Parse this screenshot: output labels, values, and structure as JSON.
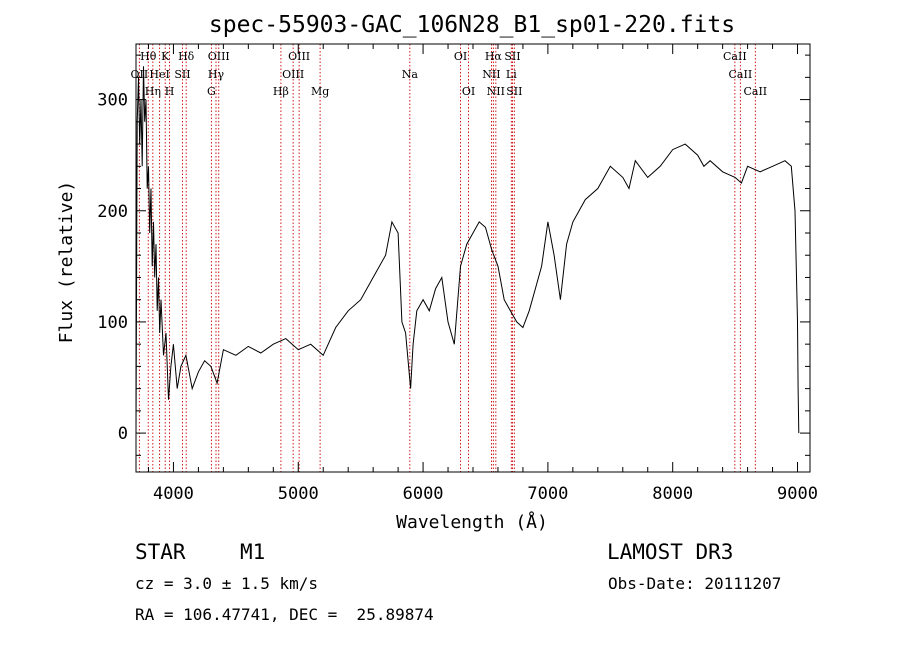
{
  "chart_data": {
    "type": "line",
    "title": "spec-55903-GAC_106N28_B1_sp01-220.fits",
    "xlabel": "Wavelength (Å)",
    "ylabel": "Flux (relative)",
    "xlim": [
      3700,
      9100
    ],
    "ylim": [
      -35,
      350
    ],
    "xticks": [
      4000,
      5000,
      6000,
      7000,
      8000,
      9000
    ],
    "xtick_labels": [
      "4000",
      "5000",
      "6000",
      "7000",
      "8000",
      "9000"
    ],
    "yticks": [
      0,
      100,
      200,
      300
    ],
    "ytick_labels": [
      "0",
      "100",
      "200",
      "300"
    ],
    "series": [
      {
        "name": "flux",
        "x": [
          3700,
          3710,
          3720,
          3730,
          3740,
          3750,
          3760,
          3770,
          3780,
          3790,
          3800,
          3810,
          3820,
          3830,
          3840,
          3850,
          3860,
          3870,
          3880,
          3890,
          3900,
          3920,
          3940,
          3960,
          3980,
          4000,
          4030,
          4060,
          4100,
          4150,
          4200,
          4250,
          4300,
          4350,
          4400,
          4500,
          4600,
          4700,
          4800,
          4900,
          5000,
          5100,
          5200,
          5300,
          5400,
          5500,
          5600,
          5700,
          5750,
          5800,
          5830,
          5860,
          5900,
          5920,
          5950,
          6000,
          6050,
          6100,
          6150,
          6200,
          6250,
          6300,
          6350,
          6400,
          6450,
          6500,
          6550,
          6600,
          6650,
          6700,
          6750,
          6800,
          6850,
          6900,
          6950,
          7000,
          7050,
          7100,
          7150,
          7200,
          7300,
          7400,
          7500,
          7600,
          7650,
          7700,
          7800,
          7900,
          8000,
          8100,
          8200,
          8250,
          8300,
          8400,
          8500,
          8550,
          8600,
          8700,
          8800,
          8900,
          8950,
          8980,
          9000,
          9005,
          9010
        ],
        "y": [
          0,
          280,
          320,
          260,
          300,
          240,
          330,
          280,
          300,
          220,
          240,
          180,
          220,
          150,
          190,
          140,
          170,
          110,
          140,
          90,
          120,
          70,
          90,
          30,
          60,
          80,
          40,
          60,
          70,
          40,
          55,
          65,
          60,
          45,
          75,
          70,
          78,
          72,
          80,
          85,
          75,
          80,
          70,
          95,
          110,
          120,
          140,
          160,
          190,
          180,
          100,
          90,
          40,
          80,
          110,
          120,
          110,
          130,
          140,
          100,
          80,
          150,
          170,
          180,
          190,
          185,
          165,
          150,
          120,
          110,
          100,
          95,
          110,
          130,
          150,
          190,
          160,
          120,
          170,
          190,
          210,
          220,
          240,
          230,
          220,
          245,
          230,
          240,
          255,
          260,
          250,
          240,
          245,
          235,
          230,
          225,
          240,
          235,
          240,
          245,
          240,
          200,
          100,
          40,
          0
        ]
      }
    ],
    "lines": [
      {
        "name": "OII",
        "wave": 3727,
        "row": 2
      },
      {
        "name": "Hθ",
        "wave": 3798,
        "row": 1
      },
      {
        "name": "Hη",
        "wave": 3835,
        "row": 3
      },
      {
        "name": "HeI",
        "wave": 3889,
        "row": 2
      },
      {
        "name": "K",
        "wave": 3934,
        "row": 1
      },
      {
        "name": "H",
        "wave": 3969,
        "row": 3
      },
      {
        "name": "SII",
        "wave": 4072,
        "row": 2
      },
      {
        "name": "Hδ",
        "wave": 4102,
        "row": 1
      },
      {
        "name": "G",
        "wave": 4304,
        "row": 3
      },
      {
        "name": "Hγ",
        "wave": 4341,
        "row": 2
      },
      {
        "name": "OIII",
        "wave": 4363,
        "row": 1
      },
      {
        "name": "Hβ",
        "wave": 4861,
        "row": 3
      },
      {
        "name": "OIII",
        "wave": 4959,
        "row": 2
      },
      {
        "name": "OIII",
        "wave": 5007,
        "row": 1
      },
      {
        "name": "Mg",
        "wave": 5175,
        "row": 3
      },
      {
        "name": "Na",
        "wave": 5894,
        "row": 2
      },
      {
        "name": "OI",
        "wave": 6300,
        "row": 1
      },
      {
        "name": "OI",
        "wave": 6364,
        "row": 3
      },
      {
        "name": "NII",
        "wave": 6548,
        "row": 2
      },
      {
        "name": "Hα",
        "wave": 6563,
        "row": 1
      },
      {
        "name": "NII",
        "wave": 6583,
        "row": 3
      },
      {
        "name": "Li",
        "wave": 6707,
        "row": 2
      },
      {
        "name": "SII",
        "wave": 6716,
        "row": 1
      },
      {
        "name": "SII",
        "wave": 6731,
        "row": 3
      },
      {
        "name": "CaII",
        "wave": 8498,
        "row": 1
      },
      {
        "name": "CaII",
        "wave": 8542,
        "row": 2
      },
      {
        "name": "CaII",
        "wave": 8662,
        "row": 3
      }
    ],
    "colors": {
      "line_markers": "#cc0000",
      "spectrum": "#000000"
    }
  },
  "info": {
    "class_label": "STAR",
    "subclass": "M1",
    "survey": "LAMOST DR3",
    "cz": "cz = 3.0 ± 1.5 km/s",
    "obs_date": "Obs-Date: 20111207",
    "coords": "RA = 106.47741, DEC =  25.89874"
  }
}
